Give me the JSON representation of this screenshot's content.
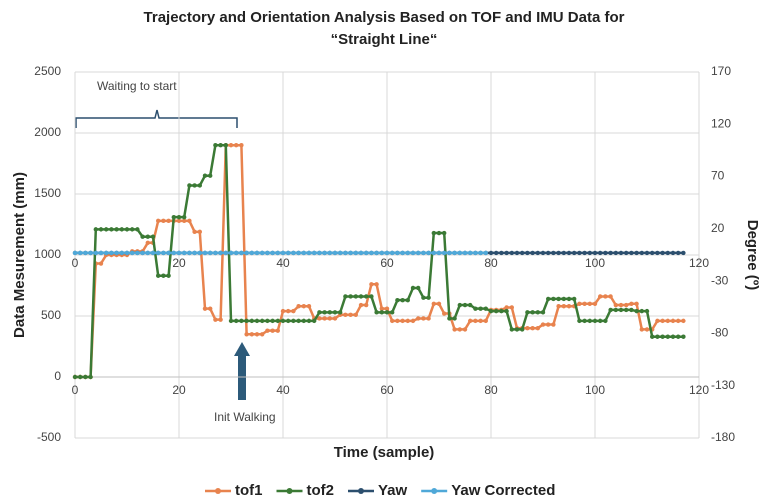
{
  "chart_data": {
    "type": "line",
    "title": [
      "Trajectory and Orientation Analysis Based on TOF and IMU Data for",
      "“Straight  Line“"
    ],
    "x_label": "Time (sample)",
    "y_label": "Data Mesurement (mm)",
    "y2_label": "Degree (º)",
    "annotations": [
      "Waiting to start",
      "Init Walking"
    ],
    "xlim": [
      0,
      120
    ],
    "xticks": [
      0,
      20,
      40,
      60,
      80,
      100,
      120
    ],
    "ylim": [
      -500,
      2500
    ],
    "yticks": [
      -500,
      0,
      500,
      1000,
      1500,
      2000,
      2500
    ],
    "y2lim": [
      -180,
      170
    ],
    "y2ticks": [
      -180,
      -130,
      -80,
      -30,
      20,
      70,
      120,
      170
    ],
    "grid": true,
    "legend": "bottom",
    "x": [
      0,
      1,
      2,
      3,
      4,
      5,
      6,
      7,
      8,
      9,
      10,
      11,
      12,
      13,
      14,
      15,
      16,
      17,
      18,
      19,
      20,
      21,
      22,
      23,
      24,
      25,
      26,
      27,
      28,
      29,
      30,
      31,
      32,
      33,
      34,
      35,
      36,
      37,
      38,
      39,
      40,
      41,
      42,
      43,
      44,
      45,
      46,
      47,
      48,
      49,
      50,
      51,
      52,
      53,
      54,
      55,
      56,
      57,
      58,
      59,
      60,
      61,
      62,
      63,
      64,
      65,
      66,
      67,
      68,
      69,
      70,
      71,
      72,
      73,
      74,
      75,
      76,
      77,
      78,
      79,
      80,
      81,
      82,
      83,
      84,
      85,
      86,
      87,
      88,
      89,
      90,
      91,
      92,
      93,
      94,
      95,
      96,
      97,
      98,
      99,
      100,
      101,
      102,
      103,
      104,
      105,
      106,
      107,
      108,
      109,
      110,
      111,
      112,
      113,
      114,
      115,
      116,
      117
    ],
    "series": [
      {
        "name": "tof1",
        "color": "#e8834e",
        "values": [
          0,
          0,
          0,
          0,
          930,
          930,
          1000,
          1000,
          1000,
          1000,
          1000,
          1030,
          1030,
          1030,
          1100,
          1100,
          1280,
          1280,
          1280,
          1280,
          1280,
          1280,
          1280,
          1190,
          1190,
          560,
          560,
          470,
          470,
          1900,
          1900,
          1900,
          1900,
          350,
          350,
          350,
          350,
          380,
          380,
          380,
          540,
          540,
          540,
          580,
          580,
          580,
          480,
          480,
          480,
          480,
          480,
          510,
          510,
          510,
          510,
          590,
          590,
          760,
          760,
          560,
          560,
          460,
          460,
          460,
          460,
          460,
          480,
          480,
          480,
          600,
          600,
          520,
          520,
          390,
          390,
          390,
          460,
          460,
          460,
          460,
          550,
          550,
          550,
          570,
          570,
          400,
          400,
          400,
          400,
          400,
          430,
          430,
          430,
          580,
          580,
          580,
          580,
          600,
          600,
          600,
          600,
          660,
          660,
          660,
          590,
          590,
          590,
          600,
          600,
          390,
          390,
          390,
          460,
          460,
          460,
          460,
          460,
          460
        ]
      },
      {
        "name": "tof2",
        "color": "#3b7a35",
        "values": [
          0,
          0,
          0,
          0,
          1210,
          1210,
          1210,
          1210,
          1210,
          1210,
          1210,
          1210,
          1210,
          1150,
          1150,
          1150,
          830,
          830,
          830,
          1310,
          1310,
          1310,
          1570,
          1570,
          1570,
          1650,
          1650,
          1900,
          1900,
          1900,
          460,
          460,
          460,
          460,
          460,
          460,
          460,
          460,
          460,
          460,
          460,
          460,
          460,
          460,
          460,
          460,
          460,
          530,
          530,
          530,
          530,
          530,
          660,
          660,
          660,
          660,
          660,
          660,
          530,
          530,
          530,
          530,
          630,
          630,
          630,
          730,
          730,
          650,
          650,
          1180,
          1180,
          1180,
          480,
          480,
          590,
          590,
          590,
          560,
          560,
          560,
          540,
          540,
          540,
          540,
          390,
          390,
          390,
          530,
          530,
          530,
          530,
          640,
          640,
          640,
          640,
          640,
          640,
          460,
          460,
          460,
          460,
          460,
          460,
          550,
          550,
          550,
          550,
          550,
          540,
          540,
          540,
          330,
          330,
          330,
          330,
          330,
          330,
          330
        ]
      },
      {
        "name": "Yaw",
        "color": "#2c4f6e",
        "axis": "y2",
        "values": [
          -3,
          -3,
          -3,
          -3,
          -3,
          -3,
          -3,
          -3,
          -3,
          -3,
          -3,
          -3,
          -3,
          -3,
          -3,
          -3,
          -3,
          -3,
          -3,
          -3,
          -3,
          -3,
          -3,
          -3,
          -3,
          -3,
          -3,
          -3,
          -3,
          -3,
          -3,
          -3,
          -3,
          -3,
          -3,
          -3,
          -3,
          -3,
          -3,
          -3,
          -3,
          -3,
          -3,
          -3,
          -3,
          -3,
          -3,
          -3,
          -3,
          -3,
          -3,
          -3,
          -3,
          -3,
          -3,
          -3,
          -3,
          -3,
          -3,
          -3,
          -3,
          -3,
          -3,
          -3,
          -3,
          -3,
          -3,
          -3,
          -3,
          -3,
          -3,
          -3,
          -3,
          -3,
          -3,
          -3,
          -3,
          -3,
          -3,
          -3,
          -3,
          -3,
          -3,
          -3,
          -3,
          -3,
          -3,
          -3,
          -3,
          -3,
          -3,
          -3,
          -3,
          -3,
          -3,
          -3,
          -3,
          -3,
          -3,
          -3,
          -3,
          -3,
          -3,
          -3,
          -3,
          -3,
          -3,
          -3,
          -3,
          -3,
          -3,
          -3,
          -3,
          -3,
          -3,
          -3,
          -3,
          -3
        ]
      },
      {
        "name": "Yaw Corrected",
        "color": "#4fa8d8",
        "axis": "y2",
        "values": [
          -3,
          -3,
          -3,
          -3,
          -3,
          -3,
          -3,
          -3,
          -3,
          -3,
          -3,
          -3,
          -3,
          -3,
          -3,
          -3,
          -3,
          -3,
          -3,
          -3,
          -3,
          -3,
          -3,
          -3,
          -3,
          -3,
          -3,
          -3,
          -3,
          -3,
          -3,
          -3,
          -3,
          -3,
          -3,
          -3,
          -3,
          -3,
          -3,
          -3,
          -3,
          -3,
          -3,
          -3,
          -3,
          -3,
          -3,
          -3,
          -3,
          -3,
          -3,
          -3,
          -3,
          -3,
          -3,
          -3,
          -3,
          -3,
          -3,
          -3,
          -3,
          -3,
          -3,
          -3,
          -3,
          -3,
          -3,
          -3,
          -3,
          -3,
          -3,
          -3,
          -3,
          -3,
          -3,
          -3,
          -3,
          -3,
          -3,
          -3,
          null,
          null,
          null,
          null,
          null,
          null,
          null,
          null,
          null,
          null,
          null,
          null,
          null,
          null,
          null,
          null,
          null,
          null,
          null,
          null,
          null,
          null,
          null,
          null,
          null,
          null,
          null,
          null,
          null,
          null,
          null,
          null,
          null,
          null,
          null,
          null,
          null,
          null
        ]
      }
    ]
  }
}
